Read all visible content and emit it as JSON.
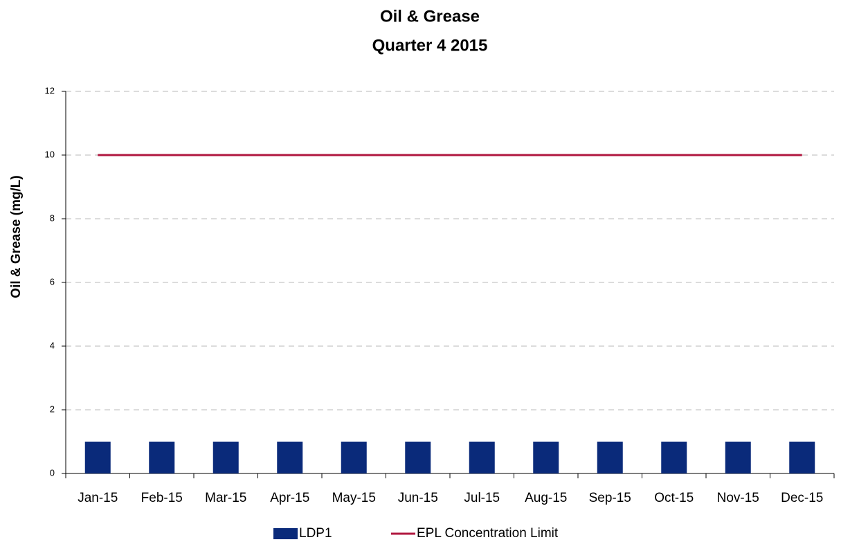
{
  "chart_data": {
    "type": "bar",
    "title": "Oil & Grease",
    "subtitle": "Quarter 4 2015",
    "y_label": "Oil & Grease (mg/L)",
    "categories": [
      "Jan-15",
      "Feb-15",
      "Mar-15",
      "Apr-15",
      "May-15",
      "Jun-15",
      "Jul-15",
      "Aug-15",
      "Sep-15",
      "Oct-15",
      "Nov-15",
      "Dec-15"
    ],
    "series": [
      {
        "name": "LDP1",
        "type": "bar",
        "color": "#0a2a7a",
        "values": [
          1,
          1,
          1,
          1,
          1,
          1,
          1,
          1,
          1,
          1,
          1,
          1
        ]
      },
      {
        "name": "EPL Concentration Limit",
        "type": "line",
        "color": "#b0173f",
        "values": [
          10,
          10,
          10,
          10,
          10,
          10,
          10,
          10,
          10,
          10,
          10,
          10
        ]
      }
    ],
    "ylim": [
      0,
      12
    ],
    "yticks": [
      0,
      2,
      4,
      6,
      8,
      10,
      12
    ],
    "grid": true,
    "legend": "bottom"
  }
}
